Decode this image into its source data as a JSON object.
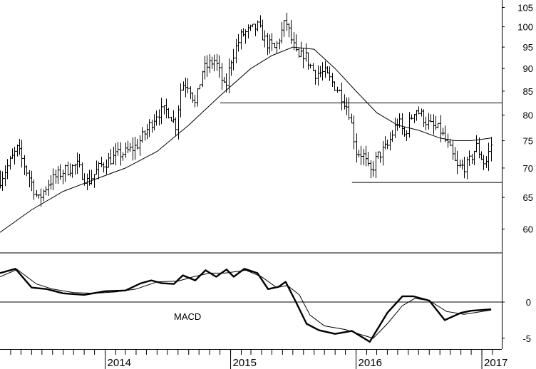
{
  "chart_data": [
    {
      "type": "ohlc",
      "panel": "price",
      "y_ticks": [
        60,
        65,
        70,
        75,
        80,
        85,
        90,
        95,
        100,
        105
      ],
      "ylim": [
        56.5,
        107
      ],
      "y_scale": "log",
      "xlim": [
        "2013-03-01",
        "2017-02-28"
      ],
      "bar_interval": "weekly",
      "series": [
        {
          "style": "ohlc-bars",
          "close_anchors": [
            [
              "2013-03-01",
              68
            ],
            [
              "2013-04-20",
              73.5
            ],
            [
              "2013-05-20",
              69
            ],
            [
              "2013-06-20",
              64.5
            ],
            [
              "2013-07-20",
              67.5
            ],
            [
              "2013-09-01",
              69.5
            ],
            [
              "2013-10-10",
              70.5
            ],
            [
              "2013-11-10",
              67.5
            ],
            [
              "2013-12-20",
              70.5
            ],
            [
              "2014-01-01",
              71
            ],
            [
              "2014-02-10",
              72.5
            ],
            [
              "2014-03-01",
              72.8
            ],
            [
              "2014-04-01",
              74
            ],
            [
              "2014-05-01",
              77
            ],
            [
              "2014-06-01",
              80.5
            ],
            [
              "2014-07-01",
              81
            ],
            [
              "2014-07-25",
              78
            ],
            [
              "2014-08-10",
              86.5
            ],
            [
              "2014-09-01",
              86.5
            ],
            [
              "2014-09-20",
              82
            ],
            [
              "2014-10-10",
              89.5
            ],
            [
              "2014-11-15",
              92
            ],
            [
              "2014-12-01",
              88.5
            ],
            [
              "2014-12-15",
              85
            ],
            [
              "2015-01-01",
              92
            ],
            [
              "2015-02-01",
              98
            ],
            [
              "2015-03-20",
              100
            ],
            [
              "2015-04-15",
              96
            ],
            [
              "2015-05-10",
              94.5
            ],
            [
              "2015-06-10",
              101.5
            ],
            [
              "2015-06-25",
              97
            ],
            [
              "2015-07-15",
              92
            ],
            [
              "2015-08-01",
              93.5
            ],
            [
              "2015-09-01",
              89
            ],
            [
              "2015-10-01",
              89
            ],
            [
              "2015-11-01",
              86
            ],
            [
              "2015-11-20",
              84
            ],
            [
              "2015-12-10",
              81
            ],
            [
              "2016-01-01",
              73
            ],
            [
              "2016-01-20",
              72.5
            ],
            [
              "2016-02-10",
              69
            ],
            [
              "2016-03-01",
              72
            ],
            [
              "2016-04-01",
              74
            ],
            [
              "2016-05-01",
              79
            ],
            [
              "2016-05-20",
              76
            ],
            [
              "2016-06-20",
              81.5
            ],
            [
              "2016-08-01",
              78
            ],
            [
              "2016-09-01",
              77
            ],
            [
              "2016-10-01",
              73
            ],
            [
              "2016-10-20",
              70
            ],
            [
              "2016-11-20",
              70.5
            ],
            [
              "2016-12-15",
              74
            ],
            [
              "2017-01-10",
              70.5
            ],
            [
              "2017-01-28",
              74.5
            ]
          ]
        },
        {
          "style": "moving-average",
          "points": [
            [
              "2013-03-01",
              59.5
            ],
            [
              "2013-06-01",
              63
            ],
            [
              "2013-09-01",
              66
            ],
            [
              "2013-12-01",
              68
            ],
            [
              "2014-03-01",
              70
            ],
            [
              "2014-06-01",
              73
            ],
            [
              "2014-09-01",
              78
            ],
            [
              "2014-12-01",
              84
            ],
            [
              "2015-03-01",
              90
            ],
            [
              "2015-05-01",
              93
            ],
            [
              "2015-07-01",
              95
            ],
            [
              "2015-09-01",
              94.5
            ],
            [
              "2015-11-01",
              90
            ],
            [
              "2016-01-01",
              85
            ],
            [
              "2016-03-01",
              80.5
            ],
            [
              "2016-05-01",
              78
            ],
            [
              "2016-07-01",
              77
            ],
            [
              "2016-09-01",
              75.5
            ],
            [
              "2016-10-15",
              75
            ],
            [
              "2016-12-01",
              75
            ],
            [
              "2017-01-28",
              75.5
            ]
          ]
        }
      ],
      "horizontal_lines": [
        {
          "value": 82.5,
          "from": "2014-12-01",
          "to": "2017-03-01"
        },
        {
          "value": 67.5,
          "from": "2015-12-20",
          "to": "2017-03-01"
        }
      ]
    },
    {
      "type": "line",
      "panel": "indicator",
      "annotation": "MACD",
      "y_ticks": [
        -5,
        0
      ],
      "ylim": [
        -6.5,
        6.8
      ],
      "series": [
        {
          "style": "macd-thick",
          "points": [
            [
              "2013-03-01",
              4
            ],
            [
              "2013-04-15",
              4.6
            ],
            [
              "2013-06-01",
              2
            ],
            [
              "2013-07-15",
              1.8
            ],
            [
              "2013-09-01",
              1.2
            ],
            [
              "2013-11-01",
              1
            ],
            [
              "2014-01-01",
              1.5
            ],
            [
              "2014-03-01",
              1.6
            ],
            [
              "2014-04-15",
              2.6
            ],
            [
              "2014-05-15",
              3
            ],
            [
              "2014-06-15",
              2.6
            ],
            [
              "2014-07-20",
              2.5
            ],
            [
              "2014-08-15",
              3.7
            ],
            [
              "2014-09-20",
              3
            ],
            [
              "2014-10-20",
              4.4
            ],
            [
              "2014-11-20",
              3.5
            ],
            [
              "2014-12-20",
              4.5
            ],
            [
              "2015-01-10",
              3.5
            ],
            [
              "2015-02-10",
              4.6
            ],
            [
              "2015-03-20",
              4
            ],
            [
              "2015-04-20",
              1.8
            ],
            [
              "2015-05-20",
              2.1
            ],
            [
              "2015-06-10",
              2.8
            ],
            [
              "2015-07-10",
              0
            ],
            [
              "2015-08-10",
              -3
            ],
            [
              "2015-09-15",
              -3.9
            ],
            [
              "2015-11-01",
              -4.4
            ],
            [
              "2015-12-20",
              -4
            ],
            [
              "2016-02-10",
              -5.5
            ],
            [
              "2016-04-01",
              -1.5
            ],
            [
              "2016-05-15",
              0.8
            ],
            [
              "2016-06-15",
              0.8
            ],
            [
              "2016-08-01",
              0.2
            ],
            [
              "2016-09-15",
              -2.5
            ],
            [
              "2016-11-01",
              -1.5
            ],
            [
              "2016-12-01",
              -1.2
            ],
            [
              "2017-01-28",
              -1
            ]
          ]
        },
        {
          "style": "signal-thin",
          "points": [
            [
              "2013-03-01",
              3.5
            ],
            [
              "2013-04-20",
              4.5
            ],
            [
              "2013-06-15",
              2.5
            ],
            [
              "2013-08-01",
              1.8
            ],
            [
              "2013-10-01",
              1.3
            ],
            [
              "2013-12-01",
              1.2
            ],
            [
              "2014-02-01",
              1.4
            ],
            [
              "2014-04-01",
              1.8
            ],
            [
              "2014-06-01",
              2.8
            ],
            [
              "2014-08-01",
              2.9
            ],
            [
              "2014-09-15",
              3.5
            ],
            [
              "2014-11-01",
              4
            ],
            [
              "2014-12-15",
              4
            ],
            [
              "2015-02-15",
              4.4
            ],
            [
              "2015-04-01",
              3.5
            ],
            [
              "2015-05-15",
              2
            ],
            [
              "2015-06-15",
              2.3
            ],
            [
              "2015-07-20",
              1
            ],
            [
              "2015-08-20",
              -1.8
            ],
            [
              "2015-10-01",
              -3.3
            ],
            [
              "2015-12-01",
              -3.8
            ],
            [
              "2016-01-15",
              -4.5
            ],
            [
              "2016-02-20",
              -5
            ],
            [
              "2016-04-01",
              -3
            ],
            [
              "2016-05-15",
              -0.5
            ],
            [
              "2016-06-20",
              0.5
            ],
            [
              "2016-08-01",
              0.2
            ],
            [
              "2016-09-20",
              -1.3
            ],
            [
              "2016-11-10",
              -1.7
            ],
            [
              "2017-01-28",
              -1.1
            ]
          ]
        }
      ],
      "horizontal_lines": [
        {
          "value": 0,
          "from": "2013-03-01",
          "to": "2017-03-01"
        }
      ]
    }
  ],
  "x_axis": {
    "labels": [
      {
        "label": "2014",
        "date": "2014-01-01"
      },
      {
        "label": "2015",
        "date": "2015-01-01"
      },
      {
        "label": "2016",
        "date": "2016-01-01"
      },
      {
        "label": "2017",
        "date": "2017-01-01"
      }
    ],
    "minor_ticks": "monthly"
  },
  "colors": {
    "line": "#000000",
    "background": "#ffffff"
  }
}
